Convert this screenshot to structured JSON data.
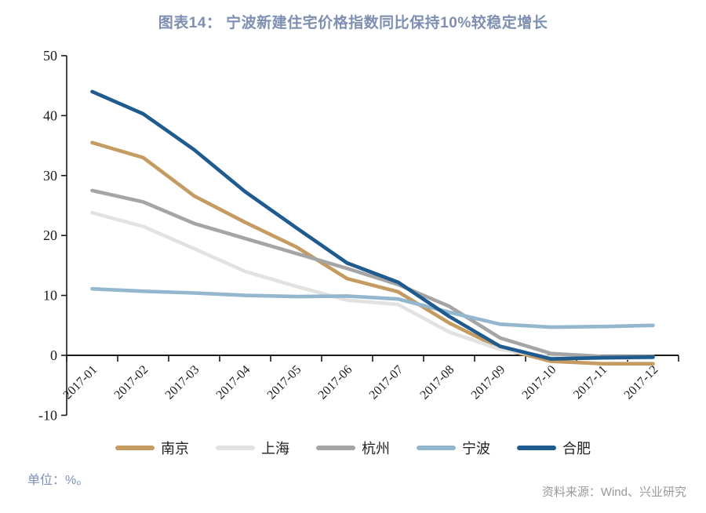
{
  "title": "图表14：  宁波新建住宅价格指数同比保持10%较稳定增长",
  "unit_note": "单位：%。",
  "source_note": "资料来源：Wind、兴业研究",
  "colors": {
    "title_text": "#7E8FB2",
    "unit_text": "#7E8FB2",
    "source_text": "#999999",
    "axis": "#1a1a1a",
    "nanjing": "#C49B61",
    "shanghai": "#E2E2E2",
    "hangzhou": "#A5A5A5",
    "ningbo": "#92B7CF",
    "hefei": "#1F5B8E"
  },
  "chart_data": {
    "type": "line",
    "title": "图表14： 宁波新建住宅价格指数同比保持10%较稳定增长",
    "xlabel": "",
    "ylabel": "",
    "ylim": [
      -10,
      50
    ],
    "yticks": [
      50,
      40,
      30,
      20,
      10,
      0,
      -10
    ],
    "grid": false,
    "legend_position": "bottom",
    "categories": [
      "2017-01",
      "2017-02",
      "2017-03",
      "2017-04",
      "2017-05",
      "2017-06",
      "2017-07",
      "2017-08",
      "2017-09",
      "2017-10",
      "2017-11",
      "2017-12"
    ],
    "series": [
      {
        "name": "南京",
        "key": "nanjing",
        "color": "#C49B61",
        "values": [
          35.5,
          33.0,
          26.6,
          22.2,
          18.1,
          12.8,
          10.6,
          5.4,
          1.2,
          -1.0,
          -1.4,
          -1.4
        ]
      },
      {
        "name": "上海",
        "key": "shanghai",
        "color": "#E2E2E2",
        "values": [
          23.8,
          21.5,
          17.8,
          14.0,
          11.5,
          9.2,
          8.5,
          3.9,
          1.0,
          -0.3,
          -0.5,
          -0.4
        ]
      },
      {
        "name": "杭州",
        "key": "hangzhou",
        "color": "#A5A5A5",
        "values": [
          27.5,
          25.6,
          22.0,
          19.5,
          17.0,
          14.5,
          11.8,
          8.2,
          2.9,
          0.3,
          -0.2,
          -0.2
        ]
      },
      {
        "name": "宁波",
        "key": "ningbo",
        "color": "#92B7CF",
        "values": [
          11.1,
          10.7,
          10.4,
          10.0,
          9.8,
          9.9,
          9.4,
          7.2,
          5.2,
          4.7,
          4.8,
          5.0
        ]
      },
      {
        "name": "合肥",
        "key": "hefei",
        "color": "#1F5B8E",
        "values": [
          44.0,
          40.3,
          34.3,
          27.3,
          21.3,
          15.4,
          12.2,
          6.5,
          1.5,
          -0.6,
          -0.4,
          -0.3
        ]
      }
    ]
  }
}
